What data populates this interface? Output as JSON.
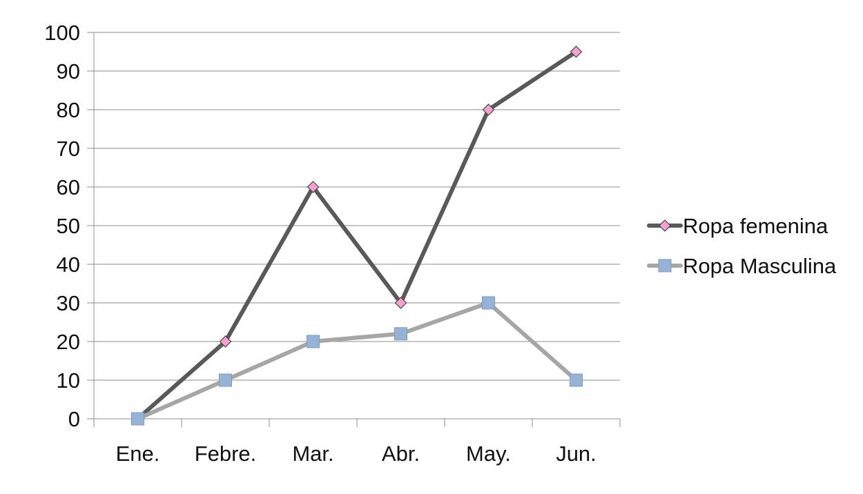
{
  "chart_data": {
    "type": "line",
    "title": "",
    "xlabel": "",
    "ylabel": "",
    "categories": [
      "Ene.",
      "Febre.",
      "Mar.",
      "Abr.",
      "May.",
      "Jun."
    ],
    "ylim": [
      0,
      100
    ],
    "yticks": [
      0,
      10,
      20,
      30,
      40,
      50,
      60,
      70,
      80,
      90,
      100
    ],
    "grid": true,
    "legend_position": "right",
    "series": [
      {
        "name": "Ropa femenina",
        "values": [
          0,
          20,
          60,
          30,
          80,
          95
        ],
        "line_color": "#595959",
        "marker": "diamond",
        "marker_color": "#f79fcf"
      },
      {
        "name": "Ropa Masculina",
        "values": [
          0,
          10,
          20,
          22,
          30,
          10
        ],
        "line_color": "#a6a6a6",
        "marker": "square",
        "marker_color": "#95b3d7"
      }
    ]
  }
}
